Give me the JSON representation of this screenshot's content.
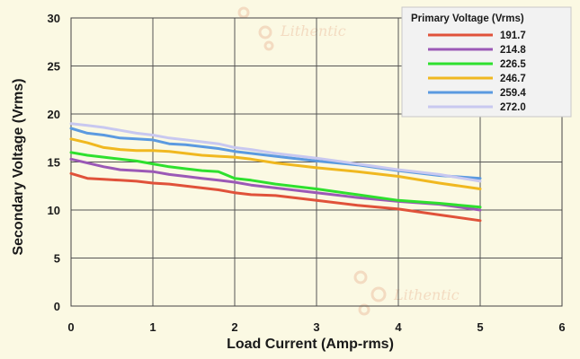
{
  "watermark": {
    "text": "Lithentic"
  },
  "chart_data": {
    "type": "line",
    "xlabel": "Load Current (Amp-rms)",
    "ylabel": "Secondary Voltage (Vrms)",
    "xlim": [
      0,
      6
    ],
    "ylim": [
      0,
      30
    ],
    "xticks": [
      0,
      1,
      2,
      3,
      4,
      5,
      6
    ],
    "yticks": [
      0,
      5,
      10,
      15,
      20,
      25,
      30
    ],
    "grid": true,
    "legend_title": "Primary Voltage (Vrms)",
    "legend_position": "top-right",
    "series": [
      {
        "name": "191.7",
        "color": "#e0523a",
        "x": [
          0,
          0.2,
          0.4,
          0.6,
          0.8,
          1.0,
          1.2,
          1.4,
          1.6,
          1.8,
          2.0,
          2.2,
          2.5,
          3.0,
          3.5,
          4.0,
          4.5,
          5.0
        ],
        "y": [
          13.8,
          13.3,
          13.2,
          13.1,
          13.0,
          12.8,
          12.7,
          12.5,
          12.3,
          12.1,
          11.8,
          11.6,
          11.5,
          11.0,
          10.5,
          10.1,
          9.5,
          8.9
        ]
      },
      {
        "name": "214.8",
        "color": "#9b59b6",
        "x": [
          0,
          0.2,
          0.4,
          0.6,
          0.8,
          1.0,
          1.2,
          1.4,
          1.6,
          1.8,
          2.0,
          2.2,
          2.5,
          3.0,
          3.5,
          4.0,
          4.5,
          5.0
        ],
        "y": [
          15.3,
          14.9,
          14.5,
          14.2,
          14.1,
          14.0,
          13.7,
          13.5,
          13.3,
          13.1,
          12.9,
          12.6,
          12.3,
          11.8,
          11.3,
          10.9,
          10.6,
          10.0
        ]
      },
      {
        "name": "226.5",
        "color": "#2ee02e",
        "x": [
          0,
          0.2,
          0.4,
          0.6,
          0.8,
          1.0,
          1.2,
          1.4,
          1.6,
          1.8,
          2.0,
          2.2,
          2.5,
          3.0,
          3.5,
          4.0,
          4.5,
          5.0
        ],
        "y": [
          16.0,
          15.7,
          15.5,
          15.3,
          15.1,
          14.8,
          14.5,
          14.3,
          14.1,
          14.0,
          13.3,
          13.1,
          12.7,
          12.2,
          11.6,
          11.0,
          10.7,
          10.3
        ]
      },
      {
        "name": "246.7",
        "color": "#f0b820",
        "x": [
          0,
          0.2,
          0.4,
          0.6,
          0.8,
          1.0,
          1.2,
          1.4,
          1.6,
          1.8,
          2.0,
          2.2,
          2.5,
          3.0,
          3.5,
          4.0,
          4.5,
          5.0
        ],
        "y": [
          17.4,
          17.0,
          16.5,
          16.3,
          16.2,
          16.2,
          16.1,
          15.9,
          15.7,
          15.6,
          15.5,
          15.3,
          14.9,
          14.4,
          14.0,
          13.5,
          12.8,
          12.2
        ]
      },
      {
        "name": "259.4",
        "color": "#5b9ae0",
        "x": [
          0,
          0.2,
          0.4,
          0.6,
          0.8,
          1.0,
          1.2,
          1.4,
          1.6,
          1.8,
          2.0,
          2.2,
          2.5,
          3.0,
          3.5,
          4.0,
          4.5,
          5.0
        ],
        "y": [
          18.5,
          18.0,
          17.8,
          17.5,
          17.4,
          17.3,
          16.9,
          16.8,
          16.6,
          16.4,
          16.1,
          15.9,
          15.6,
          15.1,
          14.7,
          14.1,
          13.6,
          13.3
        ]
      },
      {
        "name": "272.0",
        "color": "#c8c8f0",
        "x": [
          0,
          0.2,
          0.4,
          0.6,
          0.8,
          1.0,
          1.2,
          1.4,
          1.6,
          1.8,
          2.0,
          2.2,
          2.5,
          3.0,
          3.5,
          4.0,
          4.5,
          5.0
        ],
        "y": [
          19.0,
          18.8,
          18.6,
          18.3,
          18.0,
          17.8,
          17.5,
          17.3,
          17.1,
          16.9,
          16.5,
          16.3,
          15.9,
          15.4,
          14.8,
          14.2,
          13.7,
          13.0
        ]
      }
    ]
  }
}
